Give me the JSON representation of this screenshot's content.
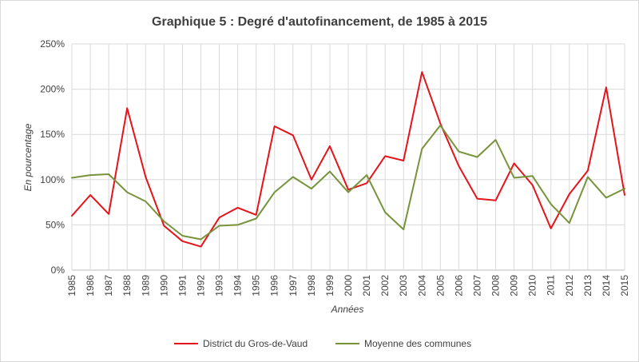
{
  "chart_data": {
    "type": "line",
    "title": "Graphique 5 : Degré d'autofinancement, de 1985 à 2015",
    "xlabel": "Années",
    "ylabel": "En pourcentage",
    "ylim": [
      0,
      250
    ],
    "yticks": [
      0,
      50,
      100,
      150,
      200,
      250
    ],
    "ytick_labels": [
      "0%",
      "50%",
      "100%",
      "150%",
      "200%",
      "250%"
    ],
    "grid": true,
    "legend_position": "bottom",
    "x": [
      "1985",
      "1986",
      "1987",
      "1988",
      "1989",
      "1990",
      "1991",
      "1992",
      "1993",
      "1994",
      "1995",
      "1996",
      "1997",
      "1998",
      "1999",
      "2000",
      "2001",
      "2002",
      "2003",
      "2004",
      "2005",
      "2006",
      "2007",
      "2008",
      "2009",
      "2010",
      "2011",
      "2012",
      "2013",
      "2014",
      "2015"
    ],
    "series": [
      {
        "name": "District du Gros-de-Vaud",
        "color": "#e5141a",
        "values": [
          60,
          83,
          62,
          179,
          103,
          49,
          32,
          26,
          58,
          69,
          61,
          159,
          149,
          100,
          137,
          89,
          96,
          126,
          121,
          219,
          162,
          115,
          79,
          77,
          118,
          94,
          46,
          84,
          110,
          202,
          83
        ]
      },
      {
        "name": "Moyenne des communes",
        "color": "#77933c",
        "values": [
          102,
          105,
          106,
          86,
          76,
          54,
          38,
          34,
          49,
          50,
          57,
          86,
          103,
          90,
          109,
          86,
          105,
          64,
          45,
          134,
          160,
          131,
          125,
          144,
          102,
          104,
          73,
          52,
          103,
          80,
          90
        ]
      }
    ]
  }
}
